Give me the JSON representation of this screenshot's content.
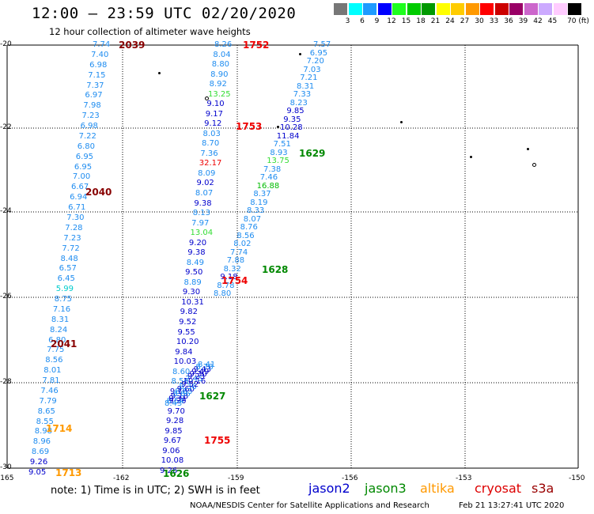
{
  "header": {
    "title": "12:00 – 23:59 UTC 02/20/2020",
    "subtitle": "12 hour collection of altimeter wave heights"
  },
  "legend": {
    "colors": [
      "#777777",
      "#00ffff",
      "#1e9bff",
      "#0000ff",
      "#1eff1e",
      "#00cc00",
      "#009900",
      "#ffff00",
      "#ffcc00",
      "#ff9900",
      "#ff0000",
      "#cc0000",
      "#990066",
      "#cc66cc",
      "#ccaaff",
      "#ffccff",
      "#000000"
    ],
    "labels": [
      "3",
      "6",
      "9",
      "12",
      "15",
      "18",
      "21",
      "24",
      "27",
      "30",
      "33",
      "36",
      "39",
      "42",
      "45",
      "70 (ft)"
    ]
  },
  "axes": {
    "lat_labels": [
      "-20",
      "-22",
      "-24",
      "-26",
      "-28",
      "-30"
    ],
    "lon_labels": [
      "-165",
      "-162",
      "-159",
      "-156",
      "-153",
      "-150"
    ]
  },
  "track_labels": [
    {
      "text": "2039",
      "color": "#880000"
    },
    {
      "text": "2040",
      "color": "#880000"
    },
    {
      "text": "2041",
      "color": "#880000"
    },
    {
      "text": "1752",
      "color": "#ee0000"
    },
    {
      "text": "1753",
      "color": "#ee0000"
    },
    {
      "text": "1754",
      "color": "#ee0000"
    },
    {
      "text": "1755",
      "color": "#ee0000"
    },
    {
      "text": "1629",
      "color": "#008800"
    },
    {
      "text": "1628",
      "color": "#008800"
    },
    {
      "text": "1627",
      "color": "#008800"
    },
    {
      "text": "1626",
      "color": "#008800"
    },
    {
      "text": "1714",
      "color": "#ff9900"
    },
    {
      "text": "1713",
      "color": "#ff9900"
    }
  ],
  "track_a": [
    "7.74",
    "7.40",
    "6.98",
    "7.15",
    "7.37",
    "6.97",
    "7.98",
    "7.23",
    "6.98",
    "7.22",
    "6.80",
    "6.95",
    "6.95",
    "7.00",
    "6.67",
    "6.94",
    "6.71",
    "7.30",
    "7.28",
    "7.23",
    "7.72",
    "8.48",
    "6.57",
    "6.45",
    "5.99",
    "8.75",
    "7.16",
    "8.31",
    "8.24",
    "6.80",
    "7.75",
    "8.56",
    "8.01",
    "7.81",
    "7.46",
    "7.79",
    "8.65",
    "8.55",
    "8.98",
    "8.96",
    "8.69",
    "9.26",
    "9.05"
  ],
  "track_b": [
    "8.26",
    "8.04",
    "8.80",
    "8.90",
    "8.92",
    "13.25",
    "9.10",
    "9.17",
    "9.12",
    "8.03",
    "8.70",
    "7.36",
    "32.17",
    "8.09",
    "9.02",
    "8.07",
    "9.38",
    "8.13",
    "7.97",
    "13.04",
    "9.20",
    "9.38",
    "8.49",
    "9.50",
    "8.89",
    "9.30",
    "10.31",
    "9.82",
    "9.52",
    "9.55",
    "10.20",
    "9.84",
    "10.03",
    "8.60",
    "8.56",
    "9.18",
    "9.20",
    "9.70",
    "9.28",
    "9.85",
    "9.67",
    "9.06",
    "10.08",
    "9.26"
  ],
  "track_b_extra": [
    "8.43",
    "8.54",
    "9.31",
    "9.18",
    "8.86",
    "8.83",
    "9.60",
    "8.36",
    "9.52",
    "10.16",
    "7.45",
    "9.23",
    "9.30",
    "9.49",
    "9.43",
    "8.78",
    "8.41"
  ],
  "track_c": [
    "7.57",
    "6.95",
    "7.20",
    "7.03",
    "7.21",
    "8.31",
    "7.33",
    "8.23",
    "9.85",
    "9.35",
    "10.28",
    "11.84",
    "7.51",
    "8.93",
    "13.75",
    "7.38",
    "7.46",
    "16.88",
    "8.37",
    "8.19",
    "8.33",
    "8.07",
    "8.76",
    "8.56",
    "8.02",
    "7.74",
    "7.88",
    "8.32",
    "9.18",
    "8.78",
    "8.80"
  ],
  "notes": {
    "note": "note:  1) Time is in UTC;  2) SWH is in feet",
    "sats": [
      {
        "text": "jason2",
        "color": "#0000cc"
      },
      {
        "text": "jason3",
        "color": "#008800"
      },
      {
        "text": "altika",
        "color": "#ff9900"
      },
      {
        "text": "cryosat",
        "color": "#dd0000"
      },
      {
        "text": "s3a",
        "color": "#990000"
      }
    ],
    "agency": "NOAA/NESDIS Center for Satellite Applications and Research",
    "timestamp": "Feb 21 13:27:41 UTC 2020"
  }
}
